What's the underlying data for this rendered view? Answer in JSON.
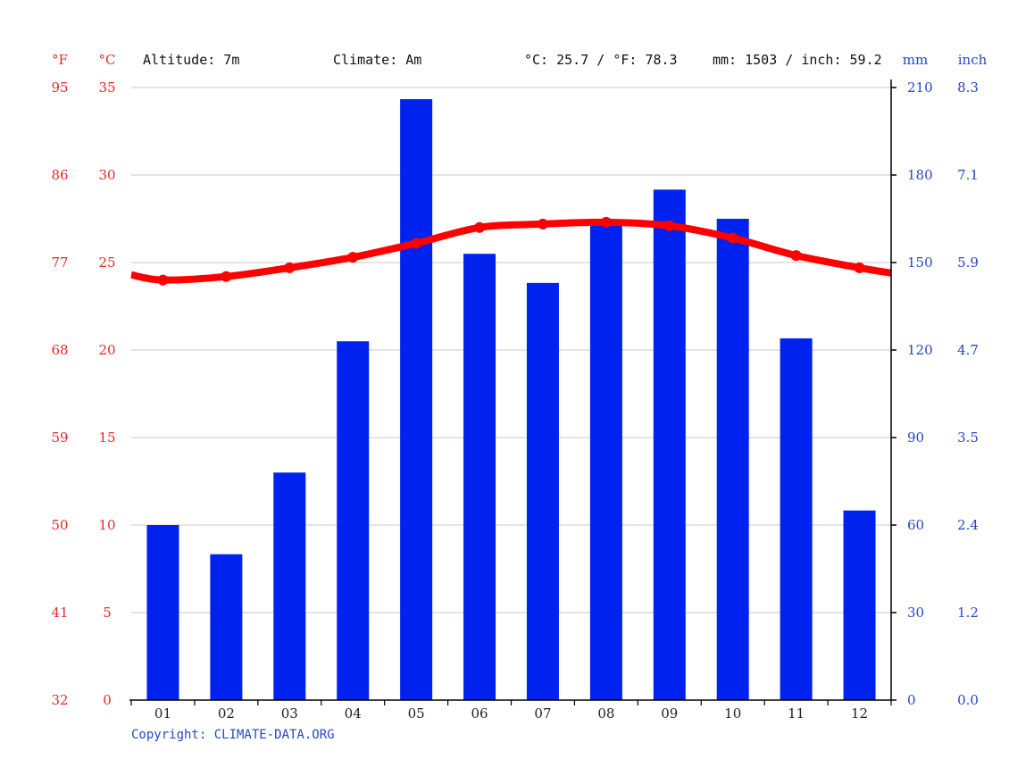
{
  "header": {
    "f_unit": "°F",
    "c_unit": "°C",
    "altitude": "Altitude: 7m",
    "climate": "Climate: Am",
    "temp_avg": "°C: 25.7 / °F: 78.3",
    "precip_total": "mm: 1503 / inch: 59.2",
    "mm_unit": "mm",
    "inch_unit": "inch"
  },
  "copyright": "Copyright: CLIMATE-DATA.ORG",
  "colors": {
    "temperature": "#ff0000",
    "precipitation": "#0022ee",
    "temp_axis_text": "#e8292b",
    "precip_axis_text": "#2646c8",
    "grid": "#c8c8c8"
  },
  "chart_data": {
    "type": "bar",
    "categories": [
      "01",
      "02",
      "03",
      "04",
      "05",
      "06",
      "07",
      "08",
      "09",
      "10",
      "11",
      "12"
    ],
    "series": [
      {
        "name": "Precipitation (mm)",
        "type": "bar",
        "axis": "right",
        "values": [
          60,
          50,
          78,
          123,
          206,
          153,
          143,
          163,
          175,
          165,
          124,
          65
        ]
      },
      {
        "name": "Temperature (°C)",
        "type": "line",
        "axis": "left",
        "values": [
          24.0,
          24.2,
          24.7,
          25.3,
          26.1,
          27.0,
          27.2,
          27.3,
          27.1,
          26.4,
          25.4,
          24.7
        ]
      }
    ],
    "y_left_c": {
      "ylim": [
        0,
        35
      ],
      "ticks": [
        "0",
        "5",
        "10",
        "15",
        "20",
        "25",
        "30",
        "35"
      ]
    },
    "y_left_f": {
      "ticks": [
        "32",
        "41",
        "50",
        "59",
        "68",
        "77",
        "86",
        "95"
      ]
    },
    "y_right_mm": {
      "ylim": [
        0,
        210
      ],
      "ticks": [
        "0",
        "30",
        "60",
        "90",
        "120",
        "150",
        "180",
        "210"
      ]
    },
    "y_right_inch": {
      "ticks": [
        "0.0",
        "1.2",
        "2.4",
        "3.5",
        "4.7",
        "5.9",
        "7.1",
        "8.3"
      ]
    },
    "temp_line_ends": {
      "left_c": 24.3,
      "right_c": 24.4
    },
    "grid": true
  }
}
